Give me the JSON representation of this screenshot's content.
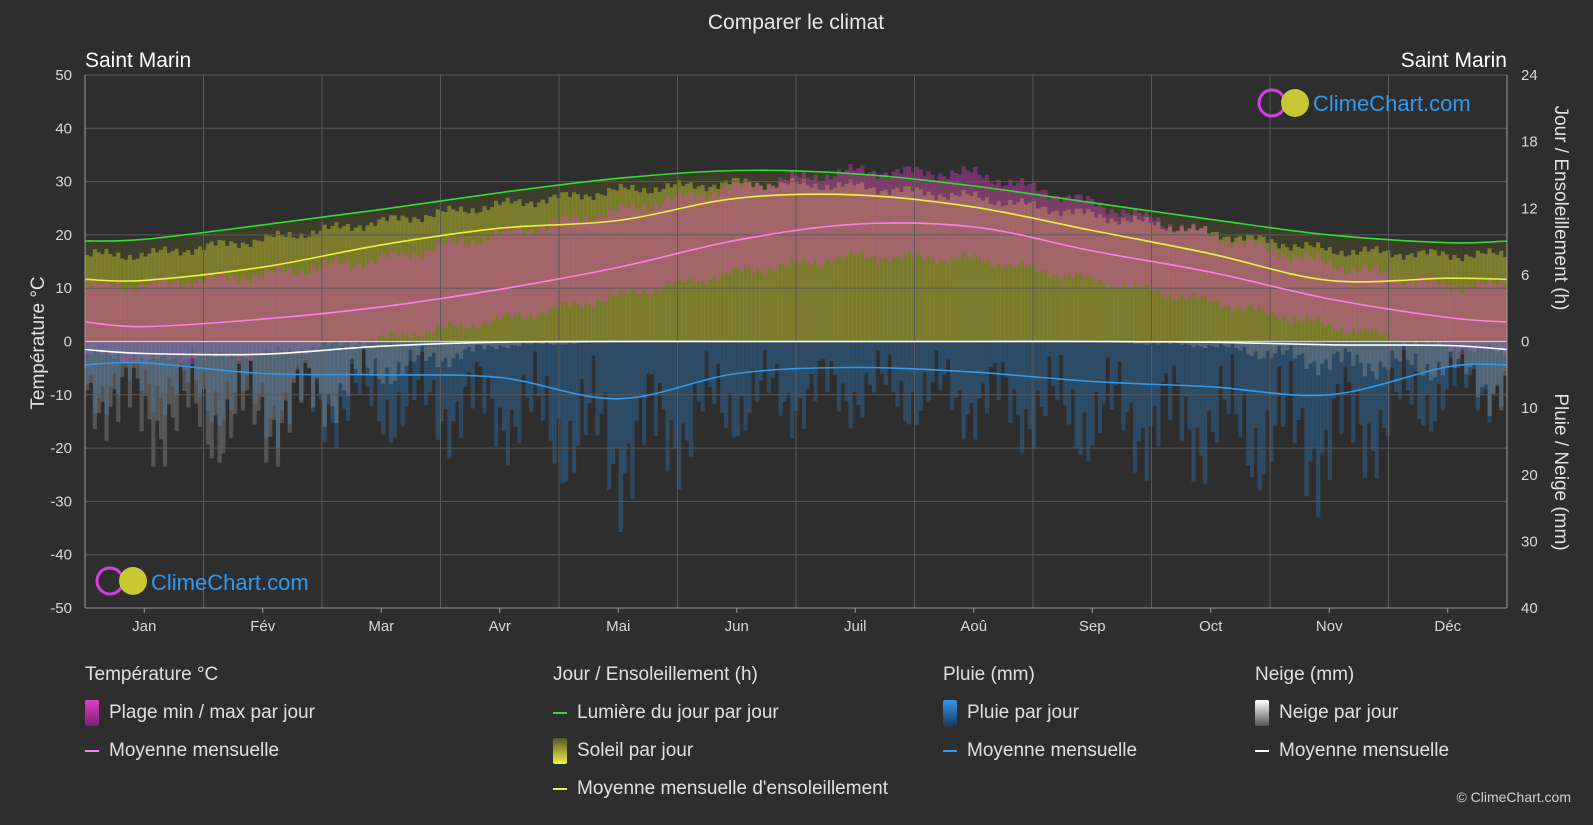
{
  "title": "Comparer le climat",
  "location_left": "Saint Marin",
  "location_right": "Saint Marin",
  "brand": "ClimeChart.com",
  "copyright": "© ClimeChart.com",
  "colors": {
    "background": "#2e2e2e",
    "temp_band": "#e040c8",
    "temp_mean": "#ff80e8",
    "daylight": "#33dd33",
    "sunshine_band": "#c8c832",
    "sunshine_mean": "#f0f040",
    "rain_band": "#2b7fc4",
    "rain_mean": "#3399ee",
    "snow_band": "#9a9a9a",
    "snow_mean": "#ffffff",
    "brand_text": "#2e9bf0"
  },
  "legend": {
    "temperature": {
      "title": "Température °C",
      "items": [
        {
          "label": "Plage min / max par jour",
          "icon": "magenta-gradient-swatch"
        },
        {
          "label": "Moyenne mensuelle",
          "icon": "pink-line"
        }
      ]
    },
    "sun": {
      "title": "Jour / Ensoleillement (h)",
      "items": [
        {
          "label": "Lumière du jour par jour",
          "icon": "green-line"
        },
        {
          "label": "Soleil par jour",
          "icon": "yellow-gradient-swatch"
        },
        {
          "label": "Moyenne mensuelle d'ensoleillement",
          "icon": "yellow-line"
        }
      ]
    },
    "rain": {
      "title": "Pluie (mm)",
      "items": [
        {
          "label": "Pluie par jour",
          "icon": "blue-gradient-swatch"
        },
        {
          "label": "Moyenne mensuelle",
          "icon": "blue-line"
        }
      ]
    },
    "snow": {
      "title": "Neige (mm)",
      "items": [
        {
          "label": "Neige par jour",
          "icon": "white-gradient-swatch"
        },
        {
          "label": "Moyenne mensuelle",
          "icon": "white-line"
        }
      ]
    }
  },
  "chart_data": {
    "type": "line",
    "categories": [
      "Jan",
      "Fév",
      "Mar",
      "Avr",
      "Mai",
      "Jun",
      "Juil",
      "Aoû",
      "Sep",
      "Oct",
      "Nov",
      "Déc"
    ],
    "y_left": {
      "label": "Température °C",
      "range": [
        -50,
        50
      ],
      "ticks": [
        50,
        40,
        30,
        20,
        10,
        0,
        -10,
        -20,
        -30,
        -40,
        -50
      ]
    },
    "y_right_top": {
      "label": "Jour / Ensoleillement (h)",
      "range": [
        0,
        24
      ],
      "ticks": [
        24,
        18,
        12,
        6,
        0
      ]
    },
    "y_right_bottom": {
      "label": "Pluie / Neige (mm)",
      "range": [
        0,
        40
      ],
      "ticks": [
        0,
        10,
        20,
        30,
        40
      ]
    },
    "grid": true,
    "series": [
      {
        "name": "Lumière du jour par jour",
        "axis": "hours",
        "values": [
          9.2,
          10.5,
          11.9,
          13.4,
          14.7,
          15.4,
          15.1,
          14.0,
          12.5,
          11.0,
          9.6,
          8.9
        ]
      },
      {
        "name": "Moyenne mensuelle d'ensoleillement",
        "axis": "hours",
        "values": [
          5.5,
          6.7,
          8.7,
          10.2,
          10.9,
          12.9,
          13.2,
          12.1,
          10.0,
          7.9,
          5.5,
          5.7
        ]
      },
      {
        "name": "Soleil par jour (max)",
        "axis": "hours",
        "values": [
          7.8,
          9.2,
          10.8,
          12.3,
          13.6,
          14.3,
          14.0,
          13.0,
          11.4,
          9.8,
          8.2,
          7.8
        ]
      },
      {
        "name": "Moyenne mensuelle",
        "axis": "temperature",
        "values": [
          2.8,
          4.2,
          6.5,
          9.8,
          13.9,
          19.0,
          22.0,
          21.5,
          17.0,
          13.0,
          8.0,
          4.5
        ]
      },
      {
        "name": "Plage min max",
        "axis": "temperature",
        "min": [
          -3.5,
          -2.5,
          0.5,
          4.0,
          8.5,
          13.0,
          16.0,
          15.5,
          11.5,
          7.5,
          3.0,
          -1.0
        ],
        "max": [
          10.5,
          12.5,
          15.5,
          20.0,
          24.5,
          29.0,
          32.0,
          31.5,
          26.0,
          20.0,
          14.5,
          10.5
        ]
      },
      {
        "name": "Pluie moyenne mensuelle",
        "axis": "precip",
        "values": [
          3.2,
          4.8,
          5.0,
          5.4,
          8.6,
          4.8,
          3.9,
          4.6,
          6.0,
          6.8,
          8.0,
          3.8
        ]
      },
      {
        "name": "Neige moyenne mensuelle",
        "axis": "precip",
        "values": [
          1.8,
          1.9,
          0.7,
          0.1,
          0.0,
          0.0,
          0.0,
          0.0,
          0.0,
          0.1,
          0.5,
          0.6
        ]
      }
    ]
  }
}
